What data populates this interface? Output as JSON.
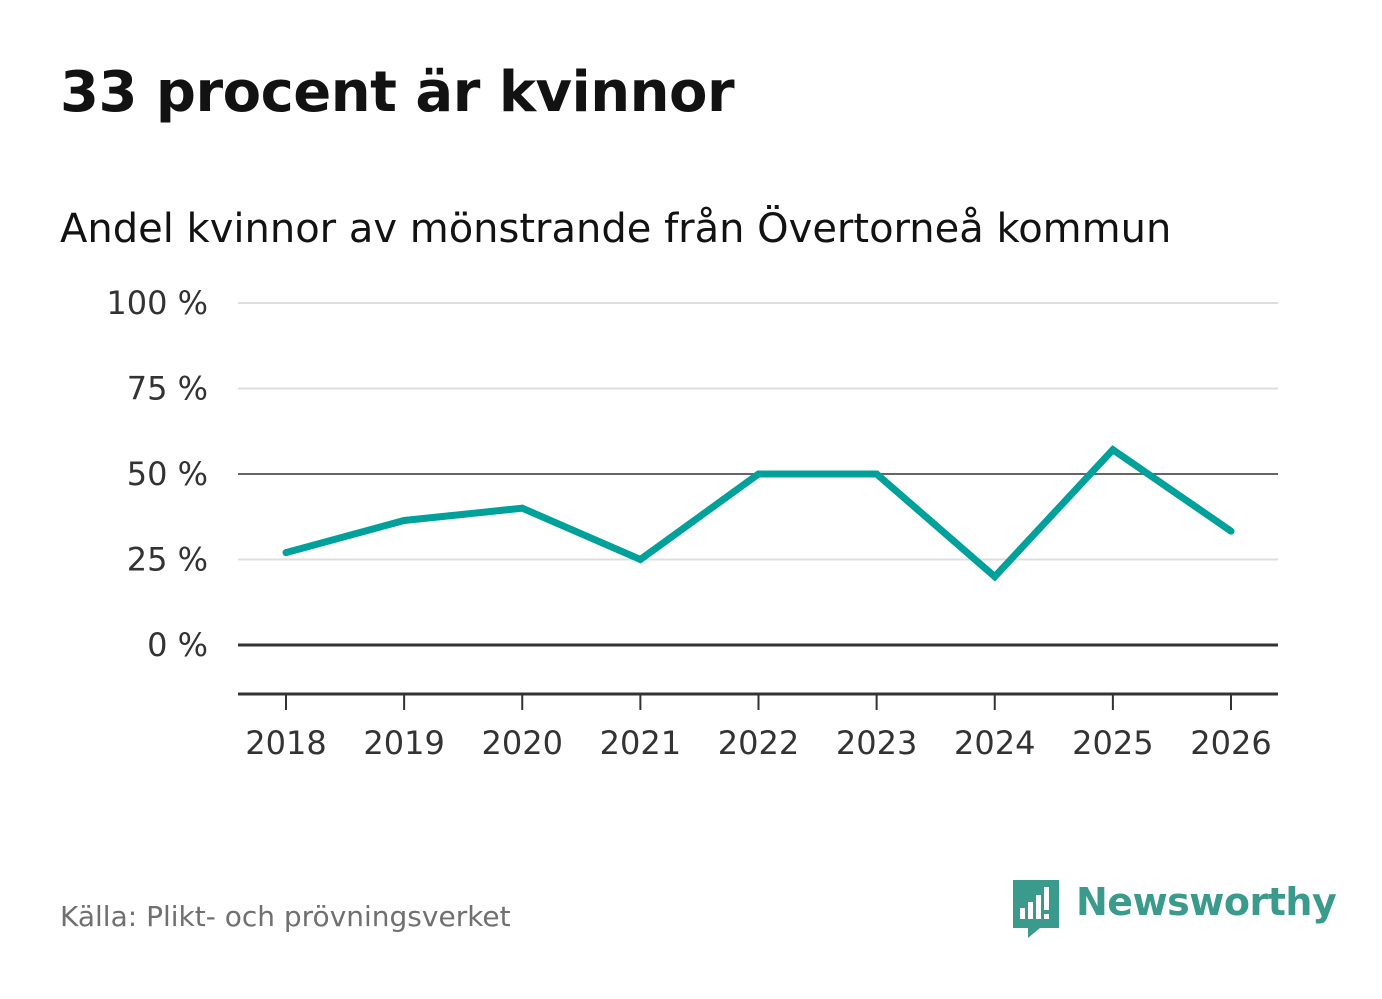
{
  "header": {
    "title": "33 procent är kvinnor",
    "subtitle": "Andel kvinnor av mönstrande från Övertorneå kommun"
  },
  "chart_data": {
    "type": "line",
    "title": "33 procent är kvinnor",
    "subtitle": "Andel kvinnor av mönstrande från Övertorneå kommun",
    "xlabel": "",
    "ylabel": "",
    "x": [
      "2018",
      "2019",
      "2020",
      "2021",
      "2022",
      "2023",
      "2024",
      "2025",
      "2026"
    ],
    "series": [
      {
        "name": "Andel kvinnor",
        "values": [
          27,
          36.4,
          40,
          25,
          50,
          50,
          20,
          57.1,
          33.3
        ]
      }
    ],
    "ylim": [
      -15,
      100
    ],
    "yticks": [
      0,
      25,
      50,
      75,
      100
    ],
    "ytick_labels": [
      "0 %",
      "25 %",
      "50 %",
      "75 %",
      "100 %"
    ],
    "emphasized_gridlines": [
      0,
      50
    ],
    "grid": true,
    "colors": {
      "line": "#00a19a",
      "grid": "#dddddd",
      "grid_strong": "#666666",
      "zero_line": "#333333",
      "axis": "#333333"
    }
  },
  "footer": {
    "source": "Källa: Plikt- och prövningsverket",
    "brand": "Newsworthy",
    "brand_icon": "newsworthy-logo-icon",
    "brand_color": "#3a9b8d"
  }
}
